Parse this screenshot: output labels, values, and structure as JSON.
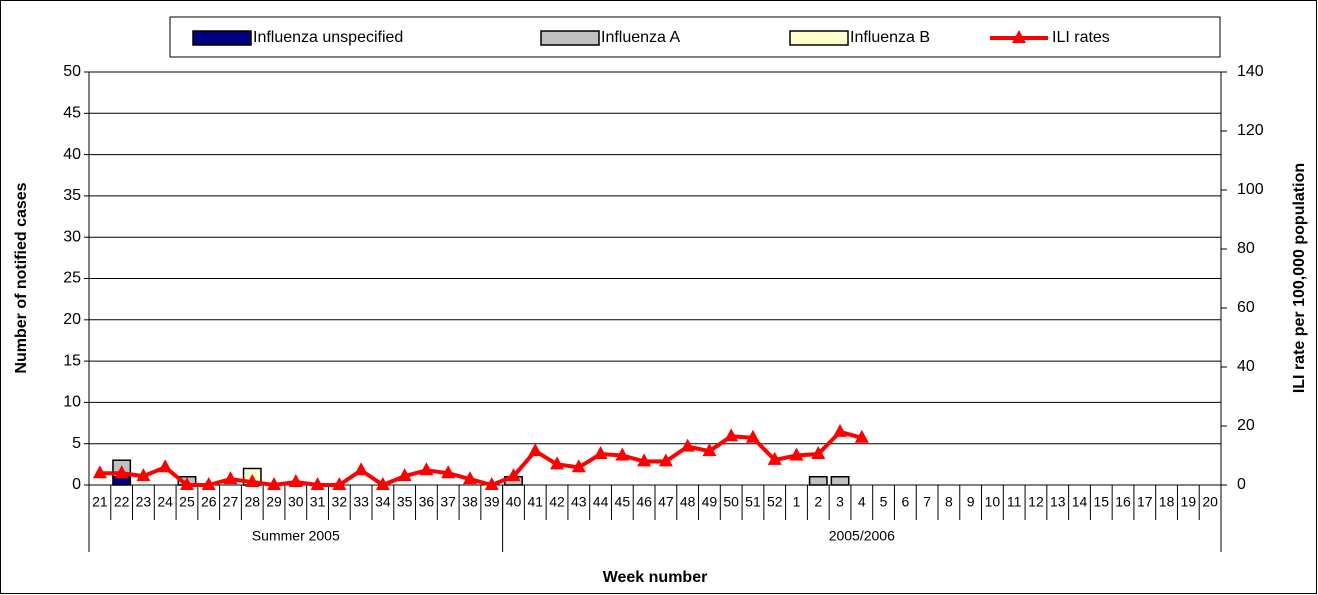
{
  "chart_data": {
    "type": "bar",
    "categories": [
      "21",
      "22",
      "23",
      "24",
      "25",
      "26",
      "27",
      "28",
      "29",
      "30",
      "31",
      "32",
      "33",
      "34",
      "35",
      "36",
      "37",
      "38",
      "39",
      "40",
      "41",
      "42",
      "43",
      "44",
      "45",
      "46",
      "47",
      "48",
      "49",
      "50",
      "51",
      "52",
      "1",
      "2",
      "3",
      "4",
      "5",
      "6",
      "7",
      "8",
      "9",
      "10",
      "11",
      "12",
      "13",
      "14",
      "15",
      "16",
      "17",
      "18",
      "19",
      "20"
    ],
    "groups": [
      {
        "label": "Summer 2005",
        "span": 19
      },
      {
        "label": "2005/2006",
        "span": 33
      }
    ],
    "x_label": "Week number",
    "y_label": "Number of notified cases",
    "y2_label": "ILI rate per 100,000 population",
    "ylim": [
      0,
      50
    ],
    "yticks": [
      0,
      5,
      10,
      15,
      20,
      25,
      30,
      35,
      40,
      45,
      50
    ],
    "y2lim": [
      0,
      140
    ],
    "y2ticks": [
      0,
      20,
      40,
      60,
      80,
      100,
      120,
      140
    ],
    "grid": true,
    "legend": "top",
    "series": [
      {
        "name": "Influenza unspecified",
        "type": "bar",
        "color": "#000080",
        "values": [
          null,
          1,
          null,
          null,
          null,
          null,
          null,
          null,
          null,
          null,
          null,
          null,
          null,
          null,
          null,
          null,
          null,
          null,
          null,
          null,
          null,
          null,
          null,
          null,
          null,
          null,
          null,
          null,
          null,
          null,
          null,
          null,
          null,
          null,
          null,
          null,
          null,
          null,
          null,
          null,
          null,
          null,
          null,
          null,
          null,
          null,
          null,
          null,
          null,
          null,
          null,
          null
        ]
      },
      {
        "name": "Influenza A",
        "type": "bar",
        "color": "#c0c0c0",
        "values": [
          null,
          2,
          null,
          null,
          1,
          null,
          null,
          null,
          null,
          null,
          null,
          null,
          null,
          null,
          null,
          null,
          null,
          null,
          null,
          1,
          null,
          null,
          null,
          null,
          null,
          null,
          null,
          null,
          null,
          null,
          null,
          null,
          null,
          1,
          1,
          null,
          null,
          null,
          null,
          null,
          null,
          null,
          null,
          null,
          null,
          null,
          null,
          null,
          null,
          null,
          null,
          null
        ]
      },
      {
        "name": "Influenza B",
        "type": "bar",
        "color": "#ffffcc",
        "values": [
          null,
          null,
          null,
          null,
          null,
          null,
          null,
          2,
          null,
          null,
          null,
          null,
          null,
          null,
          null,
          null,
          null,
          null,
          null,
          null,
          null,
          null,
          null,
          null,
          null,
          null,
          null,
          null,
          null,
          null,
          null,
          null,
          null,
          null,
          null,
          null,
          null,
          null,
          null,
          null,
          null,
          null,
          null,
          null,
          null,
          null,
          null,
          null,
          null,
          null,
          null,
          null
        ]
      },
      {
        "name": "ILI rates",
        "type": "line",
        "axis": "y2",
        "color": "#ff0000",
        "values": [
          4,
          4,
          3,
          6,
          0,
          0,
          2,
          1,
          0,
          1,
          0,
          0,
          5,
          0,
          3,
          5,
          4,
          2,
          0,
          3,
          11.5,
          7,
          6,
          10.5,
          10,
          8,
          8,
          13,
          11.5,
          16.5,
          16,
          8.5,
          10,
          10.5,
          18,
          16,
          null,
          null,
          null,
          null,
          null,
          null,
          null,
          null,
          null,
          null,
          null,
          null,
          null,
          null,
          null,
          null
        ]
      }
    ]
  }
}
